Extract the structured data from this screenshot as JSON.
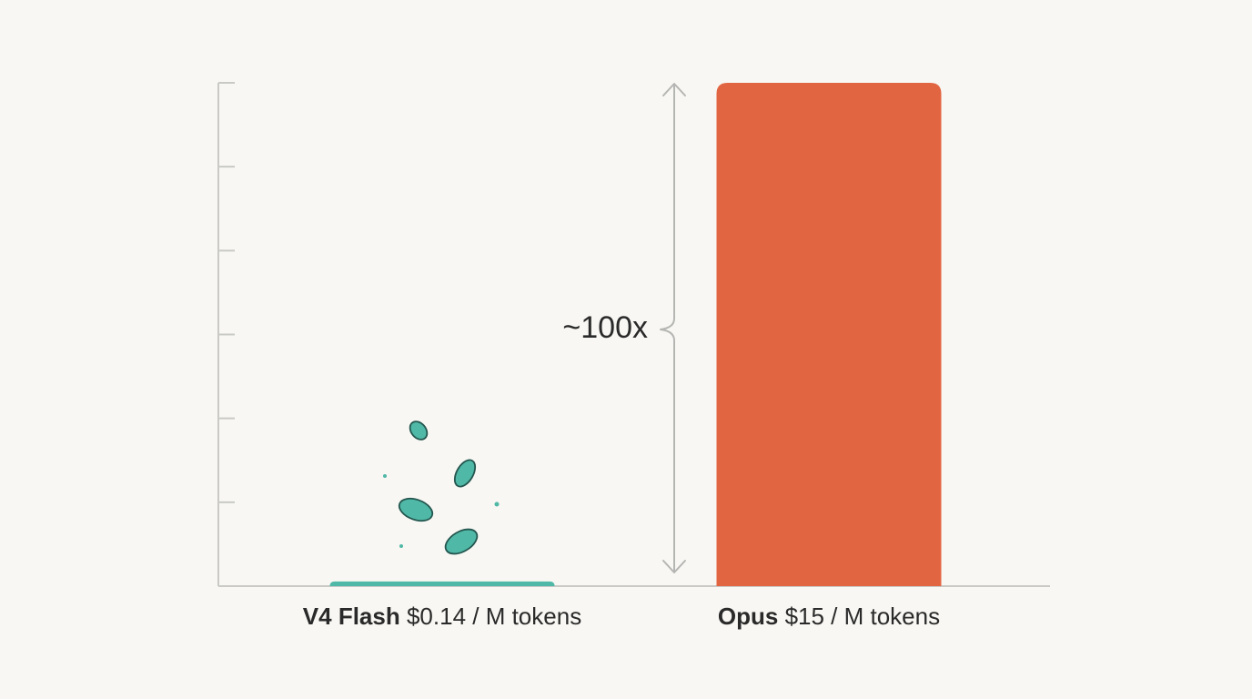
{
  "chart_data": {
    "type": "bar",
    "categories": [
      "V4 Flash",
      "Opus"
    ],
    "values": [
      0.14,
      15
    ],
    "value_labels": [
      "$0.14 / M tokens",
      "$15 / M tokens"
    ],
    "colors": [
      "#4fb8a6",
      "#e26542"
    ],
    "ylim": [
      0,
      15
    ],
    "yticks": [
      0,
      2.5,
      5,
      7.5,
      10,
      12.5,
      15
    ],
    "annotation": "~100x"
  }
}
